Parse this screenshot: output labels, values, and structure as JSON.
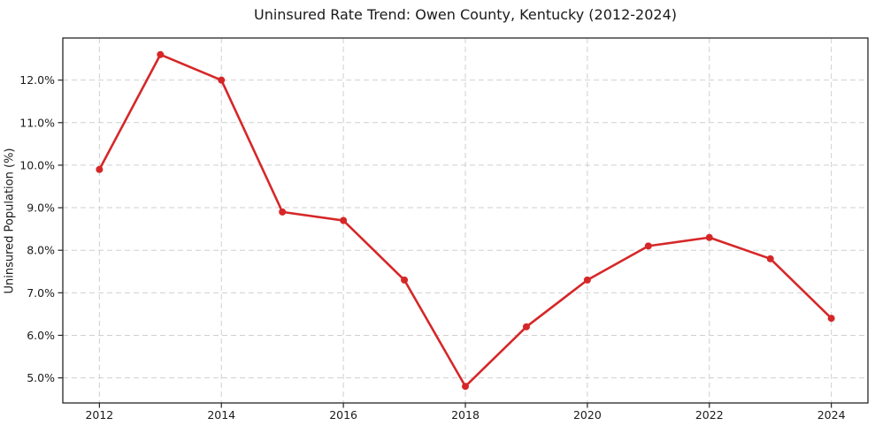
{
  "chart_data": {
    "type": "line",
    "title": "Uninsured Rate Trend: Owen County, Kentucky (2012-2024)",
    "xlabel": "",
    "ylabel": "Uninsured Population (%)",
    "x": [
      2012,
      2013,
      2014,
      2015,
      2016,
      2017,
      2018,
      2019,
      2020,
      2021,
      2022,
      2023,
      2024
    ],
    "values": [
      9.9,
      12.6,
      12.0,
      8.9,
      8.7,
      7.3,
      4.8,
      6.2,
      7.3,
      8.1,
      8.3,
      7.8,
      6.4
    ],
    "xlim": [
      2011.4,
      2024.6
    ],
    "ylim": [
      4.41,
      12.99
    ],
    "xticks": {
      "values": [
        2012,
        2014,
        2016,
        2018,
        2020,
        2022,
        2024
      ],
      "labels": [
        "2012",
        "2014",
        "2016",
        "2018",
        "2020",
        "2022",
        "2024"
      ]
    },
    "yticks": {
      "values": [
        5,
        6,
        7,
        8,
        9,
        10,
        11,
        12
      ],
      "labels": [
        "5.0%",
        "6.0%",
        "7.0%",
        "8.0%",
        "9.0%",
        "10.0%",
        "11.0%",
        "12.0%"
      ]
    },
    "grid": true,
    "grid_style": "dashed",
    "legend": "none",
    "marker": "circle",
    "colors": {
      "line": "#d62728",
      "marker": "#d62728",
      "grid": "#cfcfcf",
      "axis": "#262626",
      "text": "#1a1a1a",
      "background": "#ffffff"
    }
  }
}
